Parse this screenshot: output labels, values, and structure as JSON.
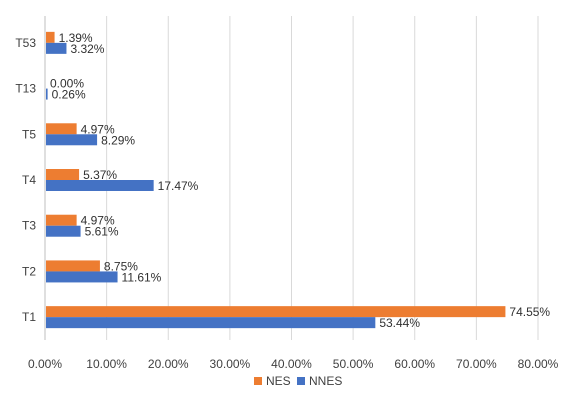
{
  "chart_data": {
    "type": "bar",
    "orientation": "horizontal",
    "categories": [
      "T1",
      "T2",
      "T3",
      "T4",
      "T5",
      "T13",
      "T53"
    ],
    "series": [
      {
        "name": "NES",
        "color": "#ED7D31",
        "values": [
          74.55,
          8.75,
          4.97,
          5.37,
          4.97,
          0.0,
          1.39
        ],
        "labels": [
          "74.55%",
          "8.75%",
          "4.97%",
          "5.37%",
          "4.97%",
          "0.00%",
          "1.39%"
        ]
      },
      {
        "name": "NNES",
        "color": "#4472C4",
        "values": [
          53.44,
          11.61,
          5.61,
          17.47,
          8.29,
          0.26,
          3.32
        ],
        "labels": [
          "53.44%",
          "11.61%",
          "5.61%",
          "17.47%",
          "8.29%",
          "0.26%",
          "3.32%"
        ]
      }
    ],
    "xlim": [
      0,
      80
    ],
    "xticks": [
      "0.00%",
      "10.00%",
      "20.00%",
      "30.00%",
      "40.00%",
      "50.00%",
      "60.00%",
      "70.00%",
      "80.00%"
    ],
    "grid": true,
    "legend": "bottom"
  }
}
